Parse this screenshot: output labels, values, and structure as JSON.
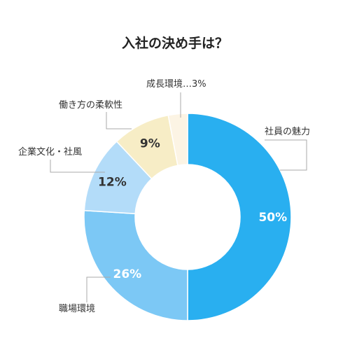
{
  "chart_data": {
    "type": "pie",
    "title": "入社の決め手は？",
    "categories": [
      "社員の魅力",
      "職場環境",
      "企業文化・社風",
      "働き方の柔軟性",
      "成長環境"
    ],
    "values": [
      50,
      26,
      12,
      9,
      3
    ],
    "value_labels": [
      "50%",
      "26%",
      "12%",
      "9%",
      ""
    ],
    "category_labels": [
      "社員の魅力",
      "職場環境",
      "企業文化・社風",
      "働き方の柔軟性",
      "成長環境…3%"
    ],
    "colors": [
      "#29aff0",
      "#7cc8f5",
      "#b3dcf9",
      "#f7edc6",
      "#fcf4e4"
    ],
    "label_colors": [
      "#ffffff",
      "#ffffff",
      "#333333",
      "#333333",
      "#333333"
    ],
    "donut": true
  }
}
